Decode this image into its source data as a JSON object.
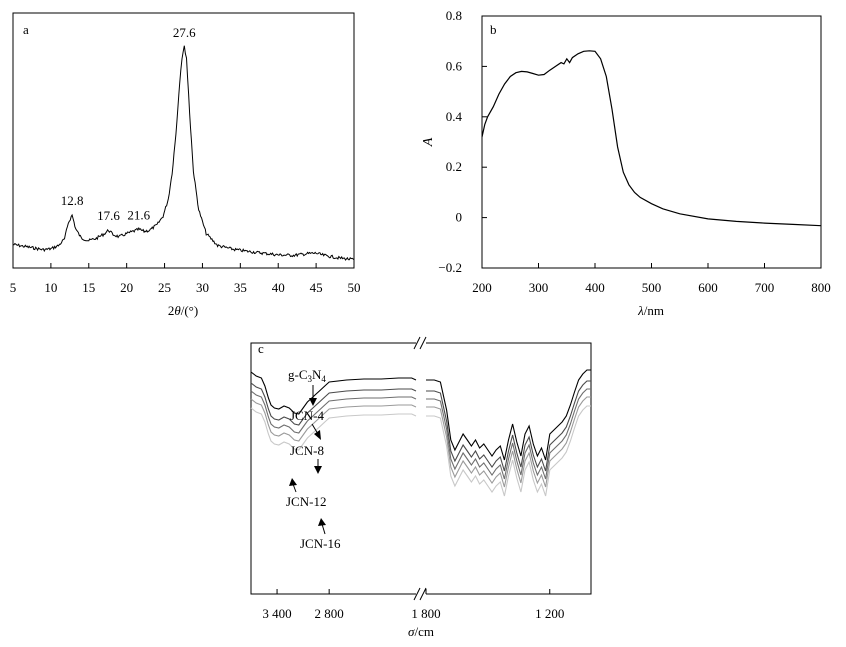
{
  "colors": {
    "axis": "#000000",
    "series_c": [
      "#000000",
      "#4a4a4a",
      "#6e6e6e",
      "#9a9a9a",
      "#c8c8c8"
    ]
  },
  "chart_data": [
    {
      "id": "a",
      "type": "line",
      "panel_label": "a",
      "title": "",
      "xlabel_parts": [
        "2",
        "θ",
        "/(°)"
      ],
      "ylabel": "",
      "xlim": [
        5,
        50
      ],
      "xticks": [
        5,
        10,
        15,
        20,
        25,
        30,
        35,
        40,
        45,
        50
      ],
      "y_axis_ticks_shown": false,
      "annotations": [
        {
          "text": "12.8",
          "x": 12.8
        },
        {
          "text": "17.6",
          "x": 17.6
        },
        {
          "text": "21.6",
          "x": 21.6
        },
        {
          "text": "27.6",
          "x": 27.6
        }
      ],
      "series": [
        {
          "x": [
            5,
            7,
            9,
            10,
            11,
            11.8,
            12.3,
            12.8,
            13.3,
            14,
            15,
            16,
            17,
            17.6,
            18.2,
            19,
            20,
            21,
            21.6,
            22.3,
            23,
            24,
            24.8,
            25.5,
            26,
            26.5,
            27,
            27.3,
            27.6,
            27.9,
            28.3,
            28.8,
            29.5,
            30.5,
            32,
            34,
            36,
            38,
            40,
            42,
            44,
            45,
            46,
            48,
            50
          ],
          "y": [
            0.09,
            0.078,
            0.066,
            0.07,
            0.085,
            0.115,
            0.19,
            0.225,
            0.16,
            0.12,
            0.108,
            0.118,
            0.138,
            0.156,
            0.136,
            0.125,
            0.14,
            0.152,
            0.16,
            0.15,
            0.155,
            0.18,
            0.22,
            0.3,
            0.42,
            0.6,
            0.84,
            0.95,
            1.0,
            0.95,
            0.7,
            0.43,
            0.25,
            0.14,
            0.085,
            0.068,
            0.058,
            0.05,
            0.042,
            0.04,
            0.048,
            0.05,
            0.04,
            0.028,
            0.02
          ]
        }
      ]
    },
    {
      "id": "b",
      "type": "line",
      "panel_label": "b",
      "title": "",
      "xlabel_parts": [
        "λ",
        "/nm"
      ],
      "ylabel": "A",
      "xlim": [
        200,
        800
      ],
      "ylim": [
        -0.2,
        0.8
      ],
      "xticks": [
        200,
        300,
        400,
        500,
        600,
        700,
        800
      ],
      "yticks": [
        -0.2,
        0,
        0.2,
        0.4,
        0.6,
        0.8
      ],
      "ytick_labels": [
        "−0.2",
        "0",
        "0.2",
        "0.4",
        "0.6",
        "0.8"
      ],
      "series": [
        {
          "x": [
            200,
            205,
            210,
            220,
            230,
            240,
            250,
            260,
            270,
            280,
            290,
            300,
            310,
            320,
            330,
            340,
            345,
            350,
            355,
            360,
            370,
            380,
            390,
            400,
            410,
            420,
            430,
            440,
            450,
            460,
            470,
            480,
            500,
            520,
            550,
            600,
            650,
            700,
            750,
            800
          ],
          "y": [
            0.32,
            0.37,
            0.4,
            0.44,
            0.49,
            0.53,
            0.56,
            0.575,
            0.58,
            0.578,
            0.572,
            0.565,
            0.568,
            0.585,
            0.6,
            0.615,
            0.61,
            0.63,
            0.615,
            0.635,
            0.65,
            0.66,
            0.662,
            0.66,
            0.63,
            0.56,
            0.43,
            0.28,
            0.18,
            0.13,
            0.1,
            0.08,
            0.055,
            0.035,
            0.015,
            -0.005,
            -0.015,
            -0.022,
            -0.027,
            -0.032
          ]
        }
      ]
    },
    {
      "id": "c",
      "type": "line",
      "panel_label": "c",
      "title": "",
      "xlabel_parts": [
        "σ",
        "/cm"
      ],
      "x_axis_break": true,
      "xlim_left": [
        3700,
        1800
      ],
      "xlim_right": [
        1800,
        1000
      ],
      "xticks_left": [
        3400,
        2800
      ],
      "xtick_labels_left": [
        "3 400",
        "2 800"
      ],
      "xticks_right": [
        1800,
        1200
      ],
      "xtick_labels_right": [
        "1 800",
        "1 200"
      ],
      "y_axis_ticks_shown": false,
      "series": [
        {
          "name": "g-C3N4",
          "label_main": "g-C",
          "label_sub": [
            "3",
            "4"
          ],
          "label_mid": "N",
          "offset": 0,
          "x": [
            3700,
            3640,
            3580,
            3540,
            3500,
            3470,
            3430,
            3380,
            3320,
            3260,
            3200,
            3150,
            3100,
            3050,
            3000,
            2950,
            2900,
            2850,
            2800,
            2600,
            2400,
            2200,
            2000,
            1850,
            1800,
            1760,
            1730,
            1700,
            1680,
            1660,
            1640,
            1620,
            1600,
            1580,
            1560,
            1540,
            1520,
            1500,
            1480,
            1460,
            1440,
            1420,
            1400,
            1380,
            1360,
            1340,
            1320,
            1300,
            1280,
            1260,
            1240,
            1220,
            1200,
            1180,
            1160,
            1140,
            1120,
            1100,
            1080,
            1060,
            1040,
            1020,
            1000
          ],
          "y": [
            0.88,
            0.84,
            0.82,
            0.74,
            0.62,
            0.55,
            0.52,
            0.51,
            0.54,
            0.52,
            0.47,
            0.46,
            0.52,
            0.58,
            0.62,
            0.66,
            0.7,
            0.74,
            0.78,
            0.8,
            0.81,
            0.81,
            0.82,
            0.82,
            0.8,
            0.8,
            0.78,
            0.5,
            0.2,
            0.1,
            0.18,
            0.26,
            0.2,
            0.14,
            0.2,
            0.12,
            0.16,
            0.1,
            0.04,
            0.1,
            0.14,
            0.0,
            0.2,
            0.36,
            0.18,
            0.04,
            0.26,
            0.34,
            0.16,
            0.04,
            0.12,
            0.0,
            0.26,
            0.3,
            0.34,
            0.38,
            0.44,
            0.55,
            0.68,
            0.8,
            0.86,
            0.9,
            0.9
          ]
        },
        {
          "name": "JCN-4",
          "offset": -0.11
        },
        {
          "name": "JCN-8",
          "offset": -0.19
        },
        {
          "name": "JCN-12",
          "offset": -0.27
        },
        {
          "name": "JCN-16",
          "offset": -0.36
        }
      ]
    }
  ]
}
